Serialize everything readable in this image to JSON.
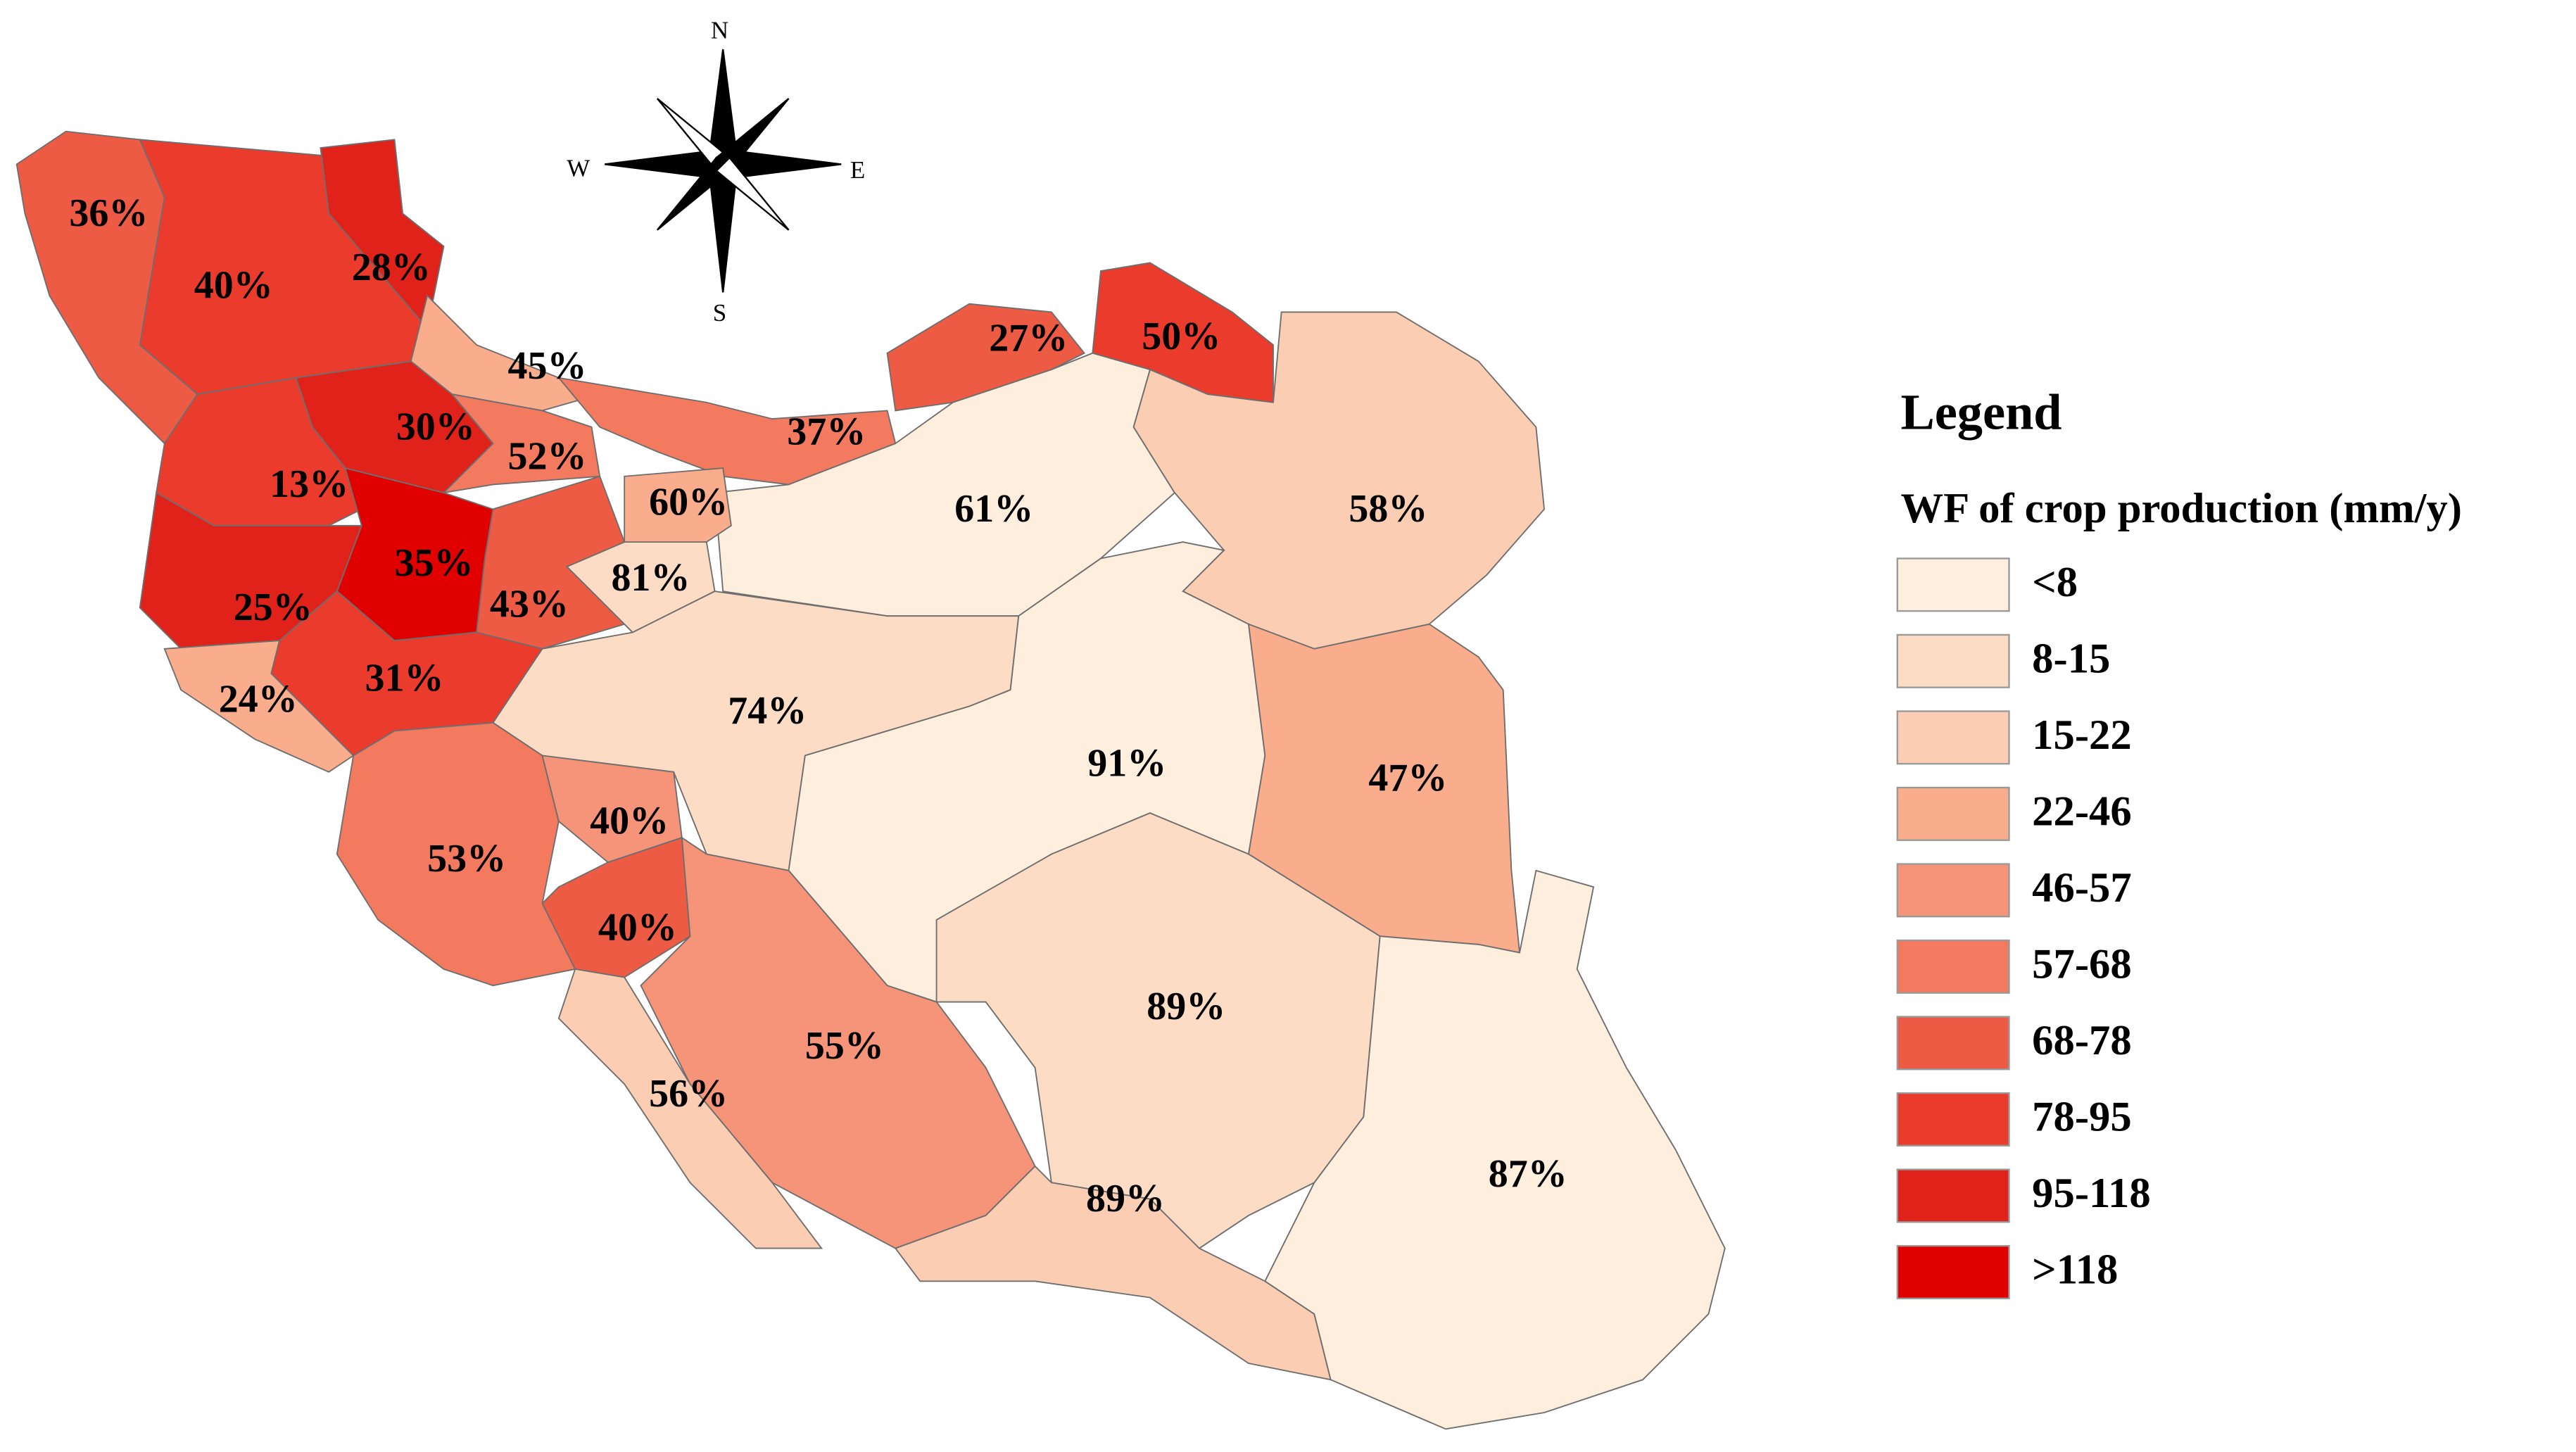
{
  "legend": {
    "title": "Legend",
    "subtitle": "WF of crop production (mm/y)",
    "items": [
      {
        "label": "<8",
        "color": "#fdeedd"
      },
      {
        "label": "8-15",
        "color": "#fcdcc4"
      },
      {
        "label": "15-22",
        "color": "#fbcdb2"
      },
      {
        "label": "22-46",
        "color": "#f9ad8c"
      },
      {
        "label": "46-57",
        "color": "#f6947a"
      },
      {
        "label": "57-68",
        "color": "#f47a5f"
      },
      {
        "label": "68-78",
        "color": "#ee5b45"
      },
      {
        "label": "78-95",
        "color": "#ea3b2d"
      },
      {
        "label": "95-118",
        "color": "#e0221a"
      },
      {
        "label": ">118",
        "color": "#e00000"
      }
    ]
  },
  "compass": {
    "n": "N",
    "e": "E",
    "s": "S",
    "w": "W"
  },
  "regions": [
    {
      "label": "36%",
      "class": 6
    },
    {
      "label": "40%",
      "class": 7
    },
    {
      "label": "28%",
      "class": 8
    },
    {
      "label": "45%",
      "class": 3
    },
    {
      "label": "30%",
      "class": 8
    },
    {
      "label": "52%",
      "class": 5
    },
    {
      "label": "13%",
      "class": 7
    },
    {
      "label": "37%",
      "class": 5
    },
    {
      "label": "27%",
      "class": 6
    },
    {
      "label": "50%",
      "class": 7
    },
    {
      "label": "61%",
      "class": 0
    },
    {
      "label": "58%",
      "class": 2
    },
    {
      "label": "35%",
      "class": 9
    },
    {
      "label": "43%",
      "class": 6
    },
    {
      "label": "81%",
      "class": 1
    },
    {
      "label": "25%",
      "class": 8
    },
    {
      "label": "24%",
      "class": 3
    },
    {
      "label": "31%",
      "class": 7
    },
    {
      "label": "74%",
      "class": 1
    },
    {
      "label": "91%",
      "class": 0
    },
    {
      "label": "47%",
      "class": 3
    },
    {
      "label": "53%",
      "class": 5
    },
    {
      "label": "40%",
      "class": 4
    },
    {
      "label": "40%",
      "class": 6
    },
    {
      "label": "55%",
      "class": 4
    },
    {
      "label": "56%",
      "class": 2
    },
    {
      "label": "89%",
      "class": 1
    },
    {
      "label": "89%",
      "class": 2
    },
    {
      "label": "87%",
      "class": 0
    },
    {
      "label": "60%",
      "class": 3
    }
  ]
}
